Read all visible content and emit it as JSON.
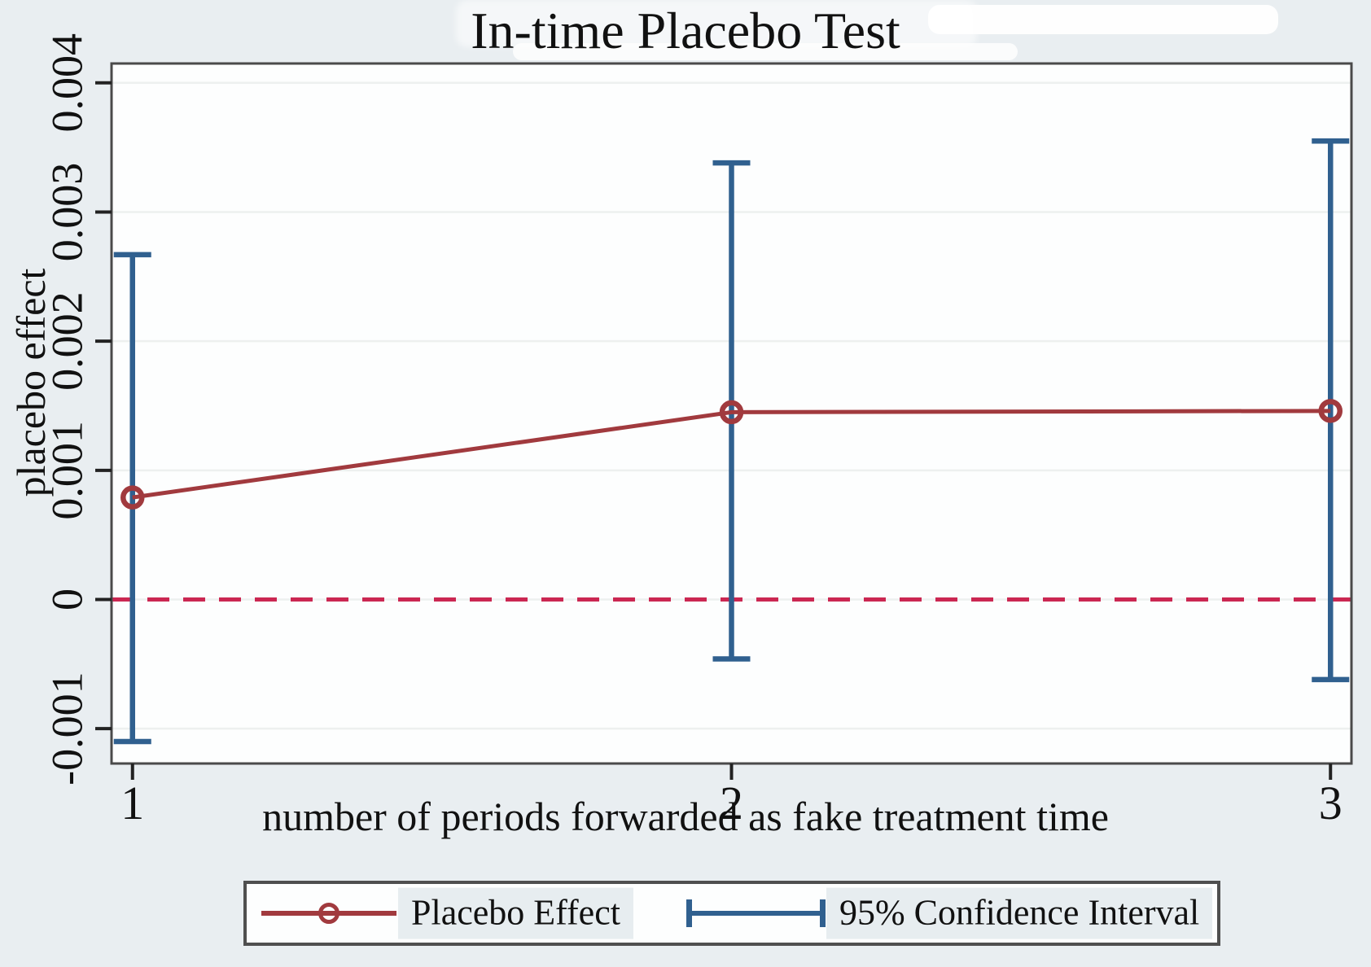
{
  "title": "In-time Placebo Test",
  "colors": {
    "page_bg": "#e9eef1",
    "plot_bg": "#fdfefe",
    "grid": "#edf0ef",
    "axis": "#4a4a4a",
    "tick": "#222222",
    "text": "#111111",
    "placebo_line": "#a13a3e",
    "ci_bar": "#30608f",
    "zero_dashed_line": "#cb2752",
    "legend_label_bg": "#e7edf0",
    "legend_border": "#4f4f4f"
  },
  "chart_data": {
    "type": "line",
    "title": "In-time Placebo Test",
    "xlabel": "number of periods forwarded as fake treatment time",
    "ylabel": "placebo effect",
    "x": [
      1,
      2,
      3
    ],
    "series": [
      {
        "name": "Placebo Effect",
        "type": "line-with-open-circle-markers",
        "values": [
          0.00079,
          0.00145,
          0.00146
        ]
      },
      {
        "name": "95% Confidence Interval",
        "type": "error-bars",
        "ci_low": [
          -0.0011,
          -0.00046,
          -0.00062
        ],
        "ci_high": [
          0.00267,
          0.00338,
          0.00355
        ]
      }
    ],
    "reference_line": {
      "y": 0,
      "style": "dashed"
    },
    "x_ticks": [
      1,
      2,
      3
    ],
    "x_tick_labels": [
      "1",
      "2",
      "3"
    ],
    "y_ticks": [
      -0.001,
      0,
      0.001,
      0.002,
      0.003,
      0.004
    ],
    "y_tick_labels": [
      "-0.001",
      "0",
      "0.001",
      "0.002",
      "0.003",
      "0.004"
    ],
    "xlim": [
      0.965,
      3.035
    ],
    "ylim": [
      -0.00127,
      0.00415
    ],
    "grid": "horizontal",
    "legend_position": "bottom"
  },
  "legend": {
    "items": [
      {
        "label": "Placebo Effect",
        "symbol": "maroon-line-open-circle"
      },
      {
        "label": "95% Confidence Interval",
        "symbol": "blue-capped-interval"
      }
    ]
  }
}
